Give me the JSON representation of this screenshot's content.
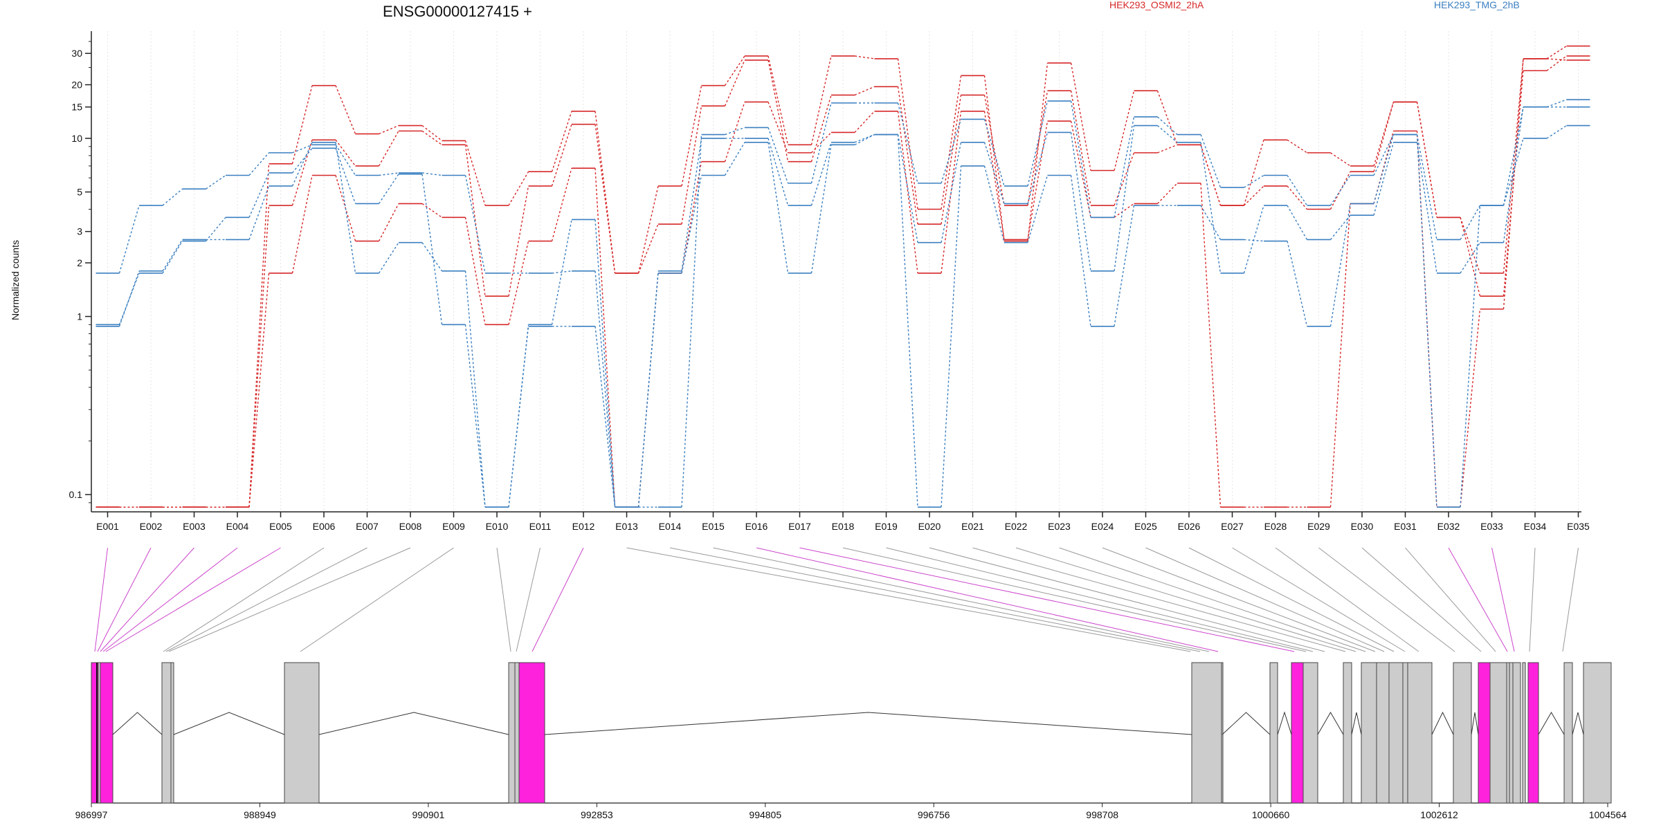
{
  "chart_data": {
    "type": "line",
    "title": "ENSG00000127415 +",
    "ylabel": "Normalized counts",
    "y_scale": "log",
    "ylim": [
      0.08,
      40
    ],
    "y_ticks": [
      0.1,
      1,
      2,
      3,
      5,
      10,
      15,
      20,
      30
    ],
    "y_tick_labels": [
      "0.1",
      "1",
      "2",
      "3",
      "5",
      "10",
      "15",
      "20",
      "30"
    ],
    "legend": [
      {
        "name": "HEK293_OSMI2_2hA",
        "color": "#d62728"
      },
      {
        "name": "HEK293_TMG_2hB",
        "color": "#3a7fc0"
      }
    ],
    "legend_placement": "top",
    "grid": "vertical",
    "categories": [
      "E001",
      "E002",
      "E003",
      "E004",
      "E005",
      "E006",
      "E007",
      "E008",
      "E009",
      "E010",
      "E011",
      "E012",
      "E013",
      "E014",
      "E015",
      "E016",
      "E017",
      "E018",
      "E019",
      "E020",
      "E021",
      "E022",
      "E023",
      "E024",
      "E025",
      "E026",
      "E027",
      "E028",
      "E029",
      "E030",
      "E031",
      "E032",
      "E033",
      "E034",
      "E035"
    ],
    "series": [
      {
        "group": "HEK293_OSMI2_2hA",
        "values": [
          0.085,
          0.085,
          0.085,
          0.085,
          7.2,
          19.8,
          10.6,
          11.8,
          9.7,
          4.2,
          6.5,
          14.2,
          1.75,
          5.4,
          19.8,
          29.0,
          9.2,
          29.0,
          28.0,
          4.0,
          22.5,
          2.65,
          26.5,
          6.6,
          18.5,
          9.2,
          4.2,
          9.8,
          8.3,
          7.0,
          16.0,
          3.6,
          1.75,
          28.0,
          33.0
        ]
      },
      {
        "group": "HEK293_OSMI2_2hA",
        "values": [
          0.085,
          0.085,
          0.085,
          0.085,
          4.2,
          9.8,
          7.0,
          11.0,
          9.2,
          1.3,
          5.4,
          12.0,
          1.75,
          3.3,
          15.2,
          27.5,
          7.4,
          17.5,
          19.5,
          3.3,
          17.5,
          4.2,
          18.5,
          4.2,
          8.3,
          9.2,
          4.2,
          5.4,
          4.0,
          6.5,
          16.0,
          3.6,
          1.3,
          24.0,
          29.0
        ]
      },
      {
        "group": "HEK293_OSMI2_2hA",
        "values": [
          0.085,
          0.085,
          0.085,
          0.085,
          1.75,
          6.2,
          2.65,
          4.3,
          3.6,
          0.9,
          2.65,
          6.8,
          0.085,
          1.75,
          7.4,
          16.0,
          8.3,
          10.8,
          14.2,
          1.75,
          14.2,
          2.7,
          12.5,
          3.6,
          4.3,
          5.6,
          0.085,
          0.085,
          0.085,
          4.3,
          11.0,
          0.085,
          1.1,
          28.0,
          27.5
        ]
      },
      {
        "group": "HEK293_TMG_2hB",
        "values": [
          1.75,
          4.2,
          5.2,
          6.2,
          8.3,
          9.2,
          6.2,
          6.4,
          6.2,
          1.75,
          1.75,
          1.8,
          0.085,
          0.085,
          10.5,
          11.5,
          5.6,
          15.8,
          15.8,
          5.6,
          12.8,
          5.4,
          16.2,
          3.6,
          13.2,
          10.5,
          5.3,
          6.2,
          4.2,
          6.2,
          10.5,
          2.7,
          4.2,
          15.0,
          16.5
        ]
      },
      {
        "group": "HEK293_TMG_2hB",
        "values": [
          0.9,
          1.75,
          2.65,
          3.6,
          6.4,
          8.8,
          4.3,
          6.3,
          0.9,
          0.085,
          0.9,
          3.5,
          0.085,
          1.8,
          10.0,
          10.0,
          4.2,
          9.5,
          10.5,
          2.6,
          9.5,
          4.3,
          10.8,
          1.8,
          11.8,
          9.5,
          1.75,
          4.2,
          2.7,
          3.7,
          9.5,
          1.75,
          2.6,
          15.0,
          15.0
        ]
      },
      {
        "group": "HEK293_TMG_2hB",
        "values": [
          0.88,
          1.8,
          2.7,
          2.7,
          5.4,
          9.5,
          1.75,
          2.6,
          1.8,
          0.085,
          0.88,
          0.88,
          0.085,
          1.75,
          6.2,
          9.5,
          1.75,
          9.2,
          10.5,
          0.085,
          7.0,
          2.6,
          6.2,
          0.88,
          4.2,
          4.2,
          2.7,
          2.65,
          0.88,
          4.3,
          10.5,
          0.085,
          4.2,
          10.0,
          11.8
        ]
      }
    ],
    "gene_model": {
      "x_tick_labels": [
        "986997",
        "988949",
        "990901",
        "992853",
        "994805",
        "996756",
        "998708",
        "1000660",
        "1002612",
        "1004564"
      ],
      "x_tick_values": [
        986997,
        988949,
        990901,
        992853,
        994805,
        996756,
        998708,
        1000660,
        1002612,
        1004564
      ],
      "xlim": [
        986997,
        1004564
      ]
    }
  },
  "colors": {
    "red": "#d62728",
    "blue": "#3a7fc0",
    "exon_grey": "#cccccc",
    "exon_highlight": "#ff22dd",
    "connector_grey": "#999999",
    "connector_pink": "#cc44cc"
  }
}
